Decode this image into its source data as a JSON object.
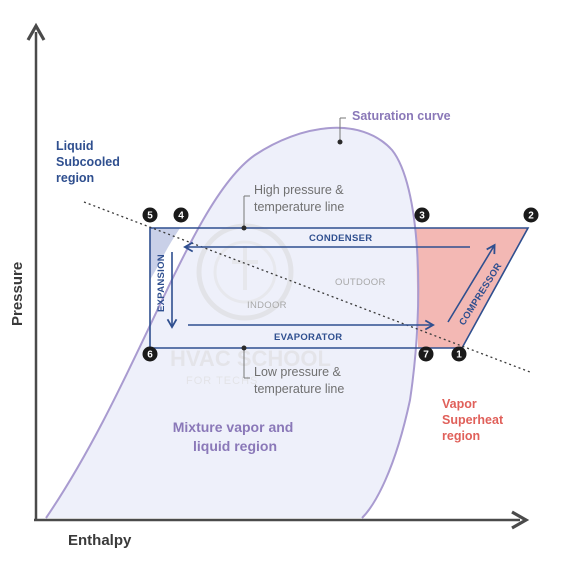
{
  "axes": {
    "y_label": "Pressure",
    "x_label": "Enthalpy"
  },
  "saturation_curve_label": "Saturation curve",
  "regions": {
    "liquid": [
      "Liquid",
      "Subcooled",
      "region"
    ],
    "vapor": [
      "Vapor",
      "Superheat",
      "region"
    ],
    "mixture": [
      "Mixture vapor and",
      "liquid region"
    ]
  },
  "lines": {
    "high": [
      "High pressure &",
      "temperature line"
    ],
    "low": [
      "Low pressure &",
      "temperature line"
    ]
  },
  "processes": {
    "condenser": "CONDENSER",
    "evaporator": "EVAPORATOR",
    "expansion": "EXPANSION",
    "compressor": "COMPRESSOR"
  },
  "zones": {
    "indoor": "INDOOR",
    "outdoor": "OUTDOOR"
  },
  "points": [
    "1",
    "2",
    "3",
    "4",
    "5",
    "6",
    "7"
  ],
  "watermark": {
    "main": "HVAC SCHOOL",
    "sub": "FOR TECHS"
  },
  "colors": {
    "axis": "#4a4a4a",
    "curve": "#a99bd0",
    "cycle": "#2f4f8f",
    "superheat": "#f3b8b4",
    "mixture_fill": "#eef0fa",
    "subcooled_fill": "#c9d0e8"
  }
}
